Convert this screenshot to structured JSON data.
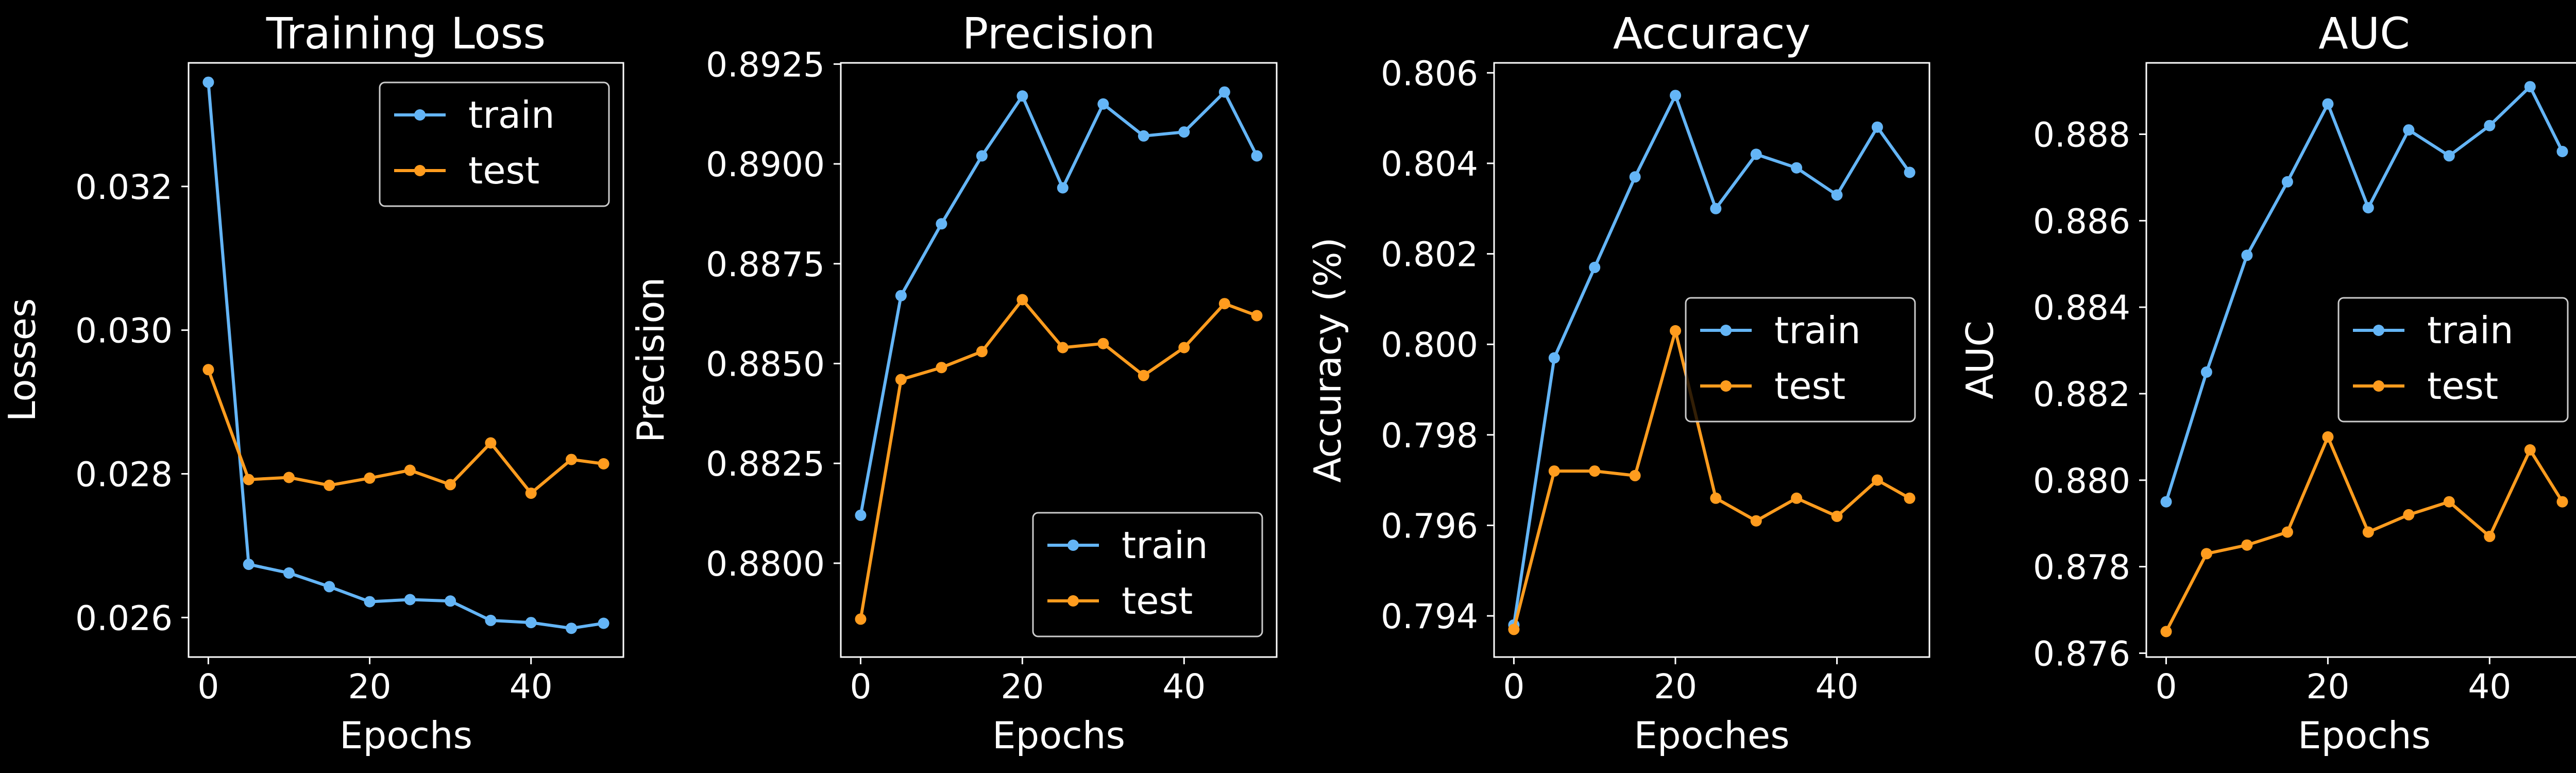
{
  "colors": {
    "background": "#000000",
    "foreground": "#ffffff",
    "train": "#64b5f6",
    "test": "#ff9c1e"
  },
  "chart_data": [
    {
      "type": "line",
      "title": "Training Loss",
      "xlabel": "Epochs",
      "ylabel": "Losses",
      "x": [
        0,
        5,
        10,
        15,
        20,
        25,
        30,
        35,
        40,
        45,
        49
      ],
      "xlim": [
        -2.45,
        51.45
      ],
      "ylim": [
        0.02545,
        0.03372
      ],
      "xticks": [
        0,
        20,
        40
      ],
      "yticks": [
        0.026,
        0.028,
        0.03,
        0.032
      ],
      "ytick_labels": [
        "0.026",
        "0.028",
        "0.030",
        "0.032"
      ],
      "legend_position": "upper right",
      "grid": false,
      "series": [
        {
          "name": "train",
          "color": "#64b5f6",
          "values": [
            0.03345,
            0.02674,
            0.02662,
            0.02643,
            0.02622,
            0.02625,
            0.02623,
            0.02596,
            0.02593,
            0.02585,
            0.02592
          ]
        },
        {
          "name": "test",
          "color": "#ff9c1e",
          "values": [
            0.02945,
            0.02792,
            0.02795,
            0.02784,
            0.02794,
            0.02805,
            0.02785,
            0.02843,
            0.02773,
            0.0282,
            0.02814
          ]
        }
      ]
    },
    {
      "type": "line",
      "title": "Precision",
      "xlabel": "Epochs",
      "ylabel": "Precision",
      "x": [
        0,
        5,
        10,
        15,
        20,
        25,
        30,
        35,
        40,
        45,
        49
      ],
      "xlim": [
        -2.45,
        51.45
      ],
      "ylim": [
        0.87765,
        0.89253
      ],
      "xticks": [
        0,
        20,
        40
      ],
      "yticks": [
        0.88,
        0.8825,
        0.885,
        0.8875,
        0.89,
        0.8925
      ],
      "ytick_labels": [
        "0.8800",
        "0.8825",
        "0.8850",
        "0.8875",
        "0.8900",
        "0.8925"
      ],
      "legend_position": "lower right",
      "grid": false,
      "series": [
        {
          "name": "train",
          "color": "#64b5f6",
          "values": [
            0.8812,
            0.8867,
            0.8885,
            0.8902,
            0.8917,
            0.8894,
            0.8915,
            0.8907,
            0.8908,
            0.8918,
            0.8902
          ]
        },
        {
          "name": "test",
          "color": "#ff9c1e",
          "values": [
            0.8786,
            0.8846,
            0.8849,
            0.8853,
            0.8866,
            0.8854,
            0.8855,
            0.8847,
            0.8854,
            0.8865,
            0.8862
          ]
        }
      ]
    },
    {
      "type": "line",
      "title": "Accuracy",
      "xlabel": "Epoches",
      "ylabel": "Accuracy (%)",
      "x": [
        0,
        5,
        10,
        15,
        20,
        25,
        30,
        35,
        40,
        45,
        49
      ],
      "xlim": [
        -2.45,
        51.45
      ],
      "ylim": [
        0.79309,
        0.80622
      ],
      "xticks": [
        0,
        20,
        40
      ],
      "yticks": [
        0.794,
        0.796,
        0.798,
        0.8,
        0.802,
        0.804,
        0.806
      ],
      "ytick_labels": [
        "0.794",
        "0.796",
        "0.798",
        "0.800",
        "0.802",
        "0.804",
        "0.806"
      ],
      "legend_position": "center right",
      "grid": false,
      "series": [
        {
          "name": "train",
          "color": "#64b5f6",
          "values": [
            0.7938,
            0.7997,
            0.8017,
            0.8037,
            0.8055,
            0.803,
            0.8042,
            0.8039,
            0.8033,
            0.8048,
            0.8038
          ]
        },
        {
          "name": "test",
          "color": "#ff9c1e",
          "values": [
            0.7937,
            0.7972,
            0.7972,
            0.7971,
            0.8003,
            0.7966,
            0.7961,
            0.7966,
            0.7962,
            0.797,
            0.7966
          ]
        }
      ]
    },
    {
      "type": "line",
      "title": "AUC",
      "xlabel": "Epochs",
      "ylabel": "AUC",
      "x": [
        0,
        5,
        10,
        15,
        20,
        25,
        30,
        35,
        40,
        45,
        49
      ],
      "xlim": [
        -2.45,
        51.45
      ],
      "ylim": [
        0.87591,
        0.88965
      ],
      "xticks": [
        0,
        20,
        40
      ],
      "yticks": [
        0.876,
        0.878,
        0.88,
        0.882,
        0.884,
        0.886,
        0.888
      ],
      "ytick_labels": [
        "0.876",
        "0.878",
        "0.880",
        "0.882",
        "0.884",
        "0.886",
        "0.888"
      ],
      "legend_position": "center right",
      "grid": false,
      "series": [
        {
          "name": "train",
          "color": "#64b5f6",
          "values": [
            0.8795,
            0.8825,
            0.8852,
            0.8869,
            0.8887,
            0.8863,
            0.8881,
            0.8875,
            0.8882,
            0.8891,
            0.8876
          ]
        },
        {
          "name": "test",
          "color": "#ff9c1e",
          "values": [
            0.8765,
            0.8783,
            0.8785,
            0.8788,
            0.881,
            0.8788,
            0.8792,
            0.8795,
            0.8787,
            0.8807,
            0.8795
          ]
        }
      ]
    }
  ]
}
